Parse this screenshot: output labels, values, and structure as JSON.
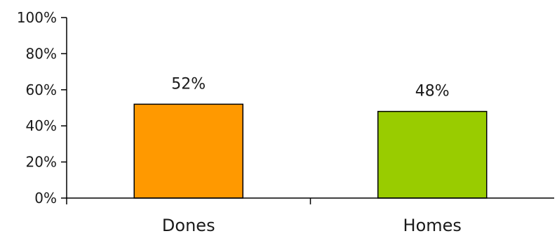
{
  "chart_data": {
    "type": "bar",
    "categories": [
      "Dones",
      "Homes"
    ],
    "values": [
      52,
      48
    ],
    "data_labels": [
      "52%",
      "48%"
    ],
    "title": "",
    "xlabel": "",
    "ylabel": "",
    "ylim": [
      0,
      100
    ],
    "yticks": [
      0,
      20,
      40,
      60,
      80,
      100
    ],
    "ytick_labels": [
      "0%",
      "20%",
      "40%",
      "60%",
      "80%",
      "100%"
    ],
    "grid": false,
    "legend": "none",
    "colors": [
      "#FF9900",
      "#99CC00"
    ],
    "bar_outline_color": "#000000",
    "axis_color": "#000000"
  }
}
